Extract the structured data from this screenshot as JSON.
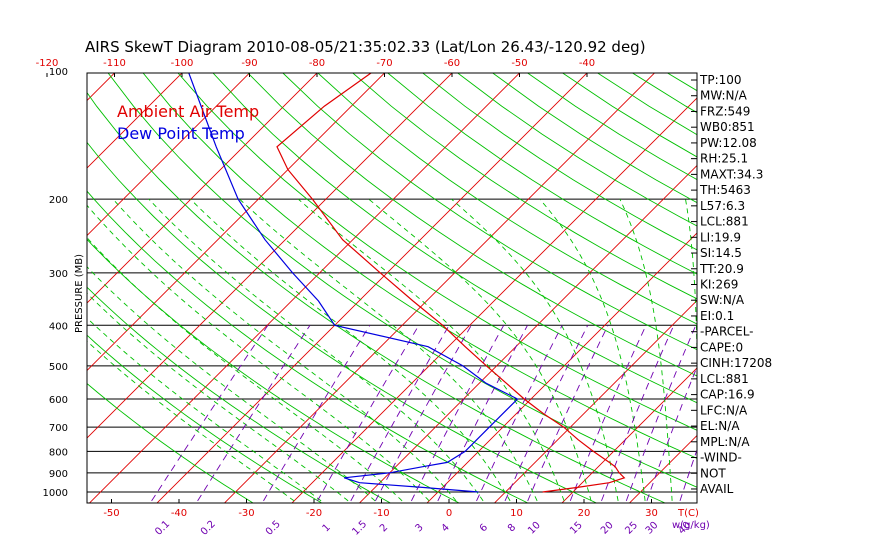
{
  "chart_data": {
    "type": "line",
    "title": "AIRS SkewT Diagram 2010-08-05/21:35:02.33 (Lat/Lon 26.43/-120.92 deg)",
    "ylabel": "PRESSURE (MB)",
    "x_unit_label": "T(C)",
    "mixing_ratio_unit_label": "w(g/kg)",
    "pressure_ticks": [
      "100",
      "200",
      "300",
      "400",
      "500",
      "600",
      "700",
      "800",
      "900",
      "1000"
    ],
    "top_temp_ticks": [
      "-120",
      "-110",
      "-100",
      "-90",
      "-80",
      "-70",
      "-60",
      "-50",
      "-40"
    ],
    "bottom_temp_ticks": [
      "-50",
      "-40",
      "-30",
      "-20",
      "-10",
      "0",
      "10",
      "20",
      "30"
    ],
    "mixing_ratio_labels": [
      "0.1",
      "0.2",
      "0.5",
      "1",
      "1.5",
      "2",
      "3",
      "4",
      "6",
      "8",
      "10",
      "15",
      "20",
      "25",
      "30",
      "40"
    ],
    "legend": [
      "Ambient Air Temp",
      "Dew Point Temp"
    ],
    "colors": {
      "temp": "#e00000",
      "dewpoint": "#0000e0",
      "isotherm": "#e00000",
      "dry_adiabat": "#00c000",
      "moist_adiabat": "#00c000",
      "mixing_ratio": "#7000b0",
      "isobar": "#000000",
      "temp_axis_labels": "#e00000",
      "mixing_ratio_axis_labels": "#7000b0"
    },
    "series": [
      {
        "name": "Ambient Air Temp",
        "pressure_mb": [
          1000,
          975,
          950,
          925,
          900,
          870,
          850,
          800,
          750,
          700,
          650,
          600,
          550,
          500,
          450,
          400,
          350,
          300,
          250,
          200,
          170,
          150,
          120,
          100
        ],
        "values": [
          15.5,
          20,
          24,
          25.5,
          24,
          22.5,
          21,
          17,
          13,
          9,
          4,
          -1,
          -6,
          -11.5,
          -17.5,
          -24,
          -32,
          -41,
          -51.5,
          -62,
          -70,
          -75,
          -74,
          -72
        ]
      },
      {
        "name": "Dew Point Temp",
        "pressure_mb": [
          1000,
          975,
          950,
          925,
          900,
          870,
          850,
          800,
          750,
          700,
          650,
          600,
          550,
          500,
          450,
          400,
          350,
          300,
          250,
          200,
          150,
          100
        ],
        "values": [
          6,
          -3,
          -13,
          -16,
          -10,
          -6,
          -3,
          -2,
          -2,
          -2,
          -2,
          -2,
          -9,
          -15,
          -23,
          -40,
          -46,
          -54,
          -63,
          -73,
          -84,
          -99
        ]
      }
    ],
    "xlim": [
      -50,
      40
    ],
    "ylim": [
      1050,
      100
    ],
    "y_scale": "log",
    "skew": "isotherms slanted 45 degrees",
    "indices": [
      "TP:100",
      "MW:N/A",
      "FRZ:549",
      "WB0:851",
      "PW:12.08",
      "RH:25.1",
      "MAXT:34.3",
      "TH:5463",
      "L57:6.3",
      "LCL:881",
      "LI:19.9",
      "SI:14.5",
      "TT:20.9",
      "KI:269",
      "SW:N/A",
      "EI:0.1",
      "-PARCEL-",
      "CAPE:0",
      "CINH:17208",
      "LCL:881",
      "CAP:16.9",
      "LFC:N/A",
      "EL:N/A",
      "MPL:N/A",
      "-WIND-",
      "NOT",
      "AVAIL"
    ]
  }
}
